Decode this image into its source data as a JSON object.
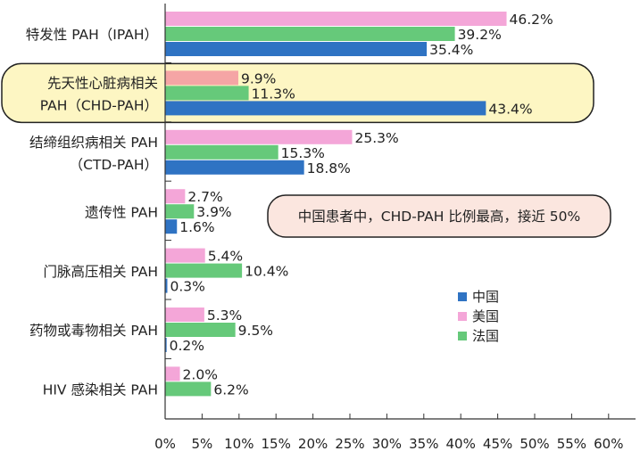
{
  "colors": {
    "china": "#2f73c3",
    "usa": "#f4a6d8",
    "usa_highlight": "#f5a5a5",
    "france": "#66c97a",
    "highlight_fill": "#fdf6c3",
    "callout_fill": "#fbe6df",
    "axis": "#333333"
  },
  "callout": {
    "text": "中国患者中，CHD-PAH 比例最高，接近 50%"
  },
  "chart_data": {
    "type": "bar",
    "orientation": "horizontal",
    "xlim": [
      0,
      60
    ],
    "x_ticks": [
      "0%",
      "5%",
      "10%",
      "15%",
      "20%",
      "25%",
      "30%",
      "35%",
      "40%",
      "45%",
      "50%",
      "55%",
      "60%"
    ],
    "categories": [
      [
        "特发性 PAH（IPAH）"
      ],
      [
        "先天性心脏病相关",
        "PAH（CHD-PAH）"
      ],
      [
        "结缔组织病相关 PAH",
        "（CTD-PAH）"
      ],
      [
        "遗传性 PAH"
      ],
      [
        "门脉高压相关 PAH"
      ],
      [
        "药物或毒物相关 PAH"
      ],
      [
        "HIV 感染相关 PAH"
      ]
    ],
    "highlighted_category": 1,
    "series": [
      {
        "name": "美国",
        "color_key": "usa",
        "values": [
          46.2,
          9.9,
          25.3,
          2.7,
          5.4,
          5.3,
          2.0
        ]
      },
      {
        "name": "法国",
        "color_key": "france",
        "values": [
          39.2,
          11.3,
          15.3,
          3.9,
          10.4,
          9.5,
          6.2
        ]
      },
      {
        "name": "中国",
        "color_key": "china",
        "values": [
          35.4,
          43.4,
          18.8,
          1.6,
          0.3,
          0.2,
          null
        ]
      }
    ],
    "data_labels": [
      [
        "46.2%",
        "9.9%",
        "25.3%",
        "2.7%",
        "5.4%",
        "5.3%",
        "2.0%"
      ],
      [
        "39.2%",
        "11.3%",
        "15.3%",
        "3.9%",
        "10.4%",
        "9.5%",
        "6.2%"
      ],
      [
        "35.4%",
        "43.4%",
        "18.8%",
        "1.6%",
        "0.3%",
        "0.2%",
        ""
      ]
    ],
    "legend": {
      "position": "right",
      "entries": [
        {
          "label": "中国",
          "color_key": "china"
        },
        {
          "label": "美国",
          "color_key": "usa"
        },
        {
          "label": "法国",
          "color_key": "france"
        }
      ]
    },
    "grid": false
  }
}
